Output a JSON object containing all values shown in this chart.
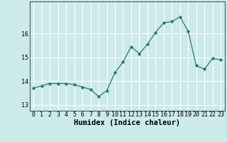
{
  "x": [
    0,
    1,
    2,
    3,
    4,
    5,
    6,
    7,
    8,
    9,
    10,
    11,
    12,
    13,
    14,
    15,
    16,
    17,
    18,
    19,
    20,
    21,
    22,
    23
  ],
  "y": [
    13.7,
    13.8,
    13.9,
    13.9,
    13.9,
    13.85,
    13.75,
    13.65,
    13.35,
    13.6,
    14.35,
    14.8,
    15.45,
    15.15,
    15.55,
    16.05,
    16.45,
    16.5,
    16.7,
    16.1,
    14.65,
    14.5,
    14.95,
    14.9
  ],
  "xlabel": "Humidex (Indice chaleur)",
  "xlim": [
    -0.5,
    23.5
  ],
  "ylim": [
    12.75,
    17.35
  ],
  "yticks": [
    13,
    14,
    15,
    16
  ],
  "xticks": [
    0,
    1,
    2,
    3,
    4,
    5,
    6,
    7,
    8,
    9,
    10,
    11,
    12,
    13,
    14,
    15,
    16,
    17,
    18,
    19,
    20,
    21,
    22,
    23
  ],
  "line_color": "#2d7a6e",
  "marker": "D",
  "marker_size": 1.8,
  "bg_color": "#cceaea",
  "grid_color": "#ffffff",
  "axis_color": "#555555",
  "xlabel_fontsize": 7.5,
  "tick_fontsize": 6.0
}
